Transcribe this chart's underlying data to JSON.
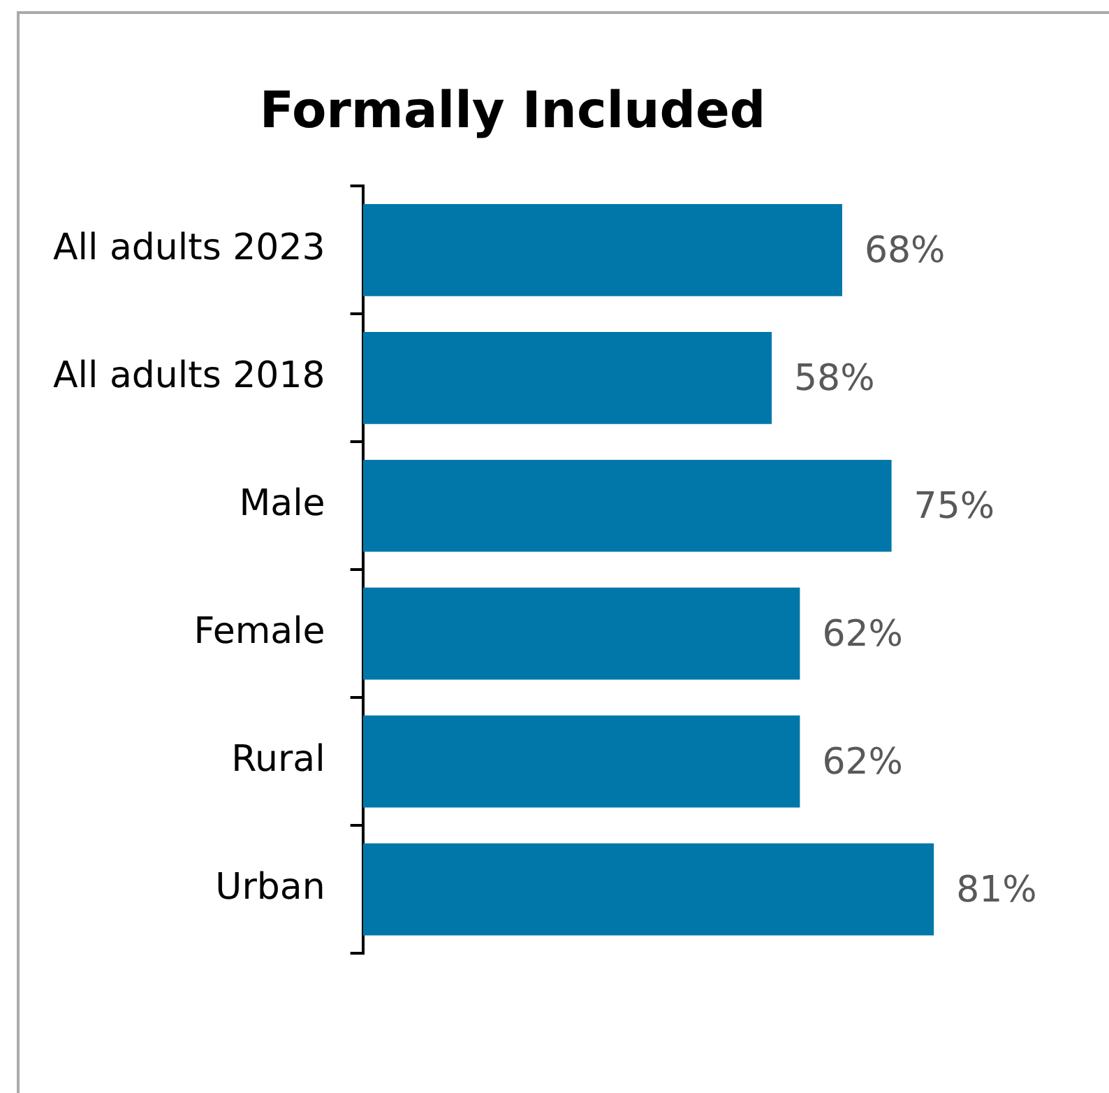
{
  "chart_data": {
    "type": "bar",
    "orientation": "horizontal",
    "title": "Formally Included",
    "categories": [
      "All adults 2023",
      "All adults 2018",
      "Male",
      "Female",
      "Rural",
      "Urban"
    ],
    "values": [
      68,
      58,
      75,
      62,
      62,
      81
    ],
    "value_labels": [
      "68%",
      "58%",
      "75%",
      "62%",
      "62%",
      "81%"
    ],
    "color": "#0077a8",
    "tick_labels": "y",
    "legend": false
  }
}
